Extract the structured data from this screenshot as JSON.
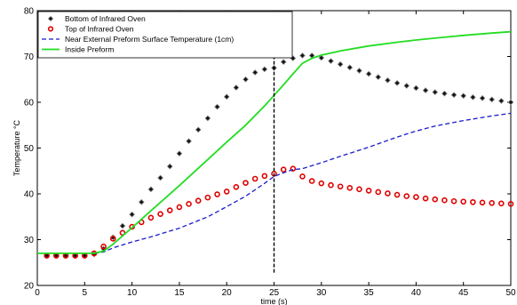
{
  "chart_data": {
    "type": "line",
    "title": "",
    "xlabel": "time (s)",
    "ylabel": "Temperature °C",
    "xlim": [
      0,
      50
    ],
    "ylim": [
      20,
      80
    ],
    "x_ticks": [
      "0",
      "5",
      "10",
      "15",
      "20",
      "25",
      "30",
      "35",
      "40",
      "45",
      "50"
    ],
    "y_ticks": [
      "20",
      "30",
      "40",
      "50",
      "60",
      "70",
      "80"
    ],
    "grid": false,
    "legend_position": "top-left",
    "vertical_marker": {
      "x": 25,
      "y_from": 22.5,
      "y_to": 76
    },
    "series": [
      {
        "name": "Bottom of Infrared Oven",
        "style": "diamond-markers",
        "color": "#000000",
        "x": [
          1,
          2,
          3,
          4,
          5,
          6,
          7,
          8,
          9,
          10,
          11,
          12,
          13,
          14,
          15,
          16,
          17,
          18,
          19,
          20,
          21,
          22,
          23,
          24,
          25,
          26,
          27,
          28,
          29,
          30,
          31,
          32,
          33,
          34,
          35,
          36,
          37,
          38,
          39,
          40,
          41,
          42,
          43,
          44,
          45,
          46,
          47,
          48,
          49,
          50
        ],
        "y": [
          26.5,
          26.5,
          26.5,
          26.5,
          26.5,
          26.8,
          28,
          30.5,
          33,
          35.5,
          38.2,
          41,
          43.5,
          46,
          48.8,
          51.5,
          54,
          56.5,
          59,
          61.2,
          63.2,
          65,
          66.5,
          67.2,
          67.5,
          68.8,
          69.6,
          70.2,
          70.2,
          69.7,
          69,
          68.3,
          67.6,
          66.9,
          66.2,
          65.5,
          64.8,
          64.2,
          63.6,
          63.1,
          62.6,
          62.2,
          61.9,
          61.6,
          61.4,
          61.1,
          60.9,
          60.6,
          60.3,
          60
        ]
      },
      {
        "name": "Top of Infrared Oven",
        "style": "circle-markers",
        "color": "#e00000",
        "x": [
          1,
          2,
          3,
          4,
          5,
          6,
          7,
          8,
          9,
          10,
          11,
          12,
          13,
          14,
          15,
          16,
          17,
          18,
          19,
          20,
          21,
          22,
          23,
          24,
          25,
          26,
          27,
          28,
          29,
          30,
          31,
          32,
          33,
          34,
          35,
          36,
          37,
          38,
          39,
          40,
          41,
          42,
          43,
          44,
          45,
          46,
          47,
          48,
          49,
          50
        ],
        "y": [
          26.5,
          26.5,
          26.5,
          26.5,
          26.5,
          27,
          28.5,
          30.2,
          31.5,
          32.8,
          33.8,
          34.8,
          35.6,
          36.4,
          37.1,
          37.8,
          38.5,
          39.2,
          39.9,
          40.5,
          41.5,
          42.4,
          43.3,
          43.9,
          44.4,
          45.3,
          45.5,
          43.8,
          42.8,
          42.3,
          41.9,
          41.6,
          41.3,
          41,
          40.7,
          40.4,
          40.1,
          39.8,
          39.5,
          39.3,
          39,
          38.8,
          38.6,
          38.4,
          38.3,
          38.2,
          38.1,
          38,
          37.9,
          37.8
        ]
      },
      {
        "name": "Near External Preform Surface Temperature (1cm)",
        "style": "dashed-line",
        "color": "#1a1acc",
        "x": [
          0,
          5,
          6,
          7,
          8,
          10,
          12,
          15,
          18,
          20,
          22,
          24,
          25,
          26,
          27,
          28,
          30,
          32,
          35,
          38,
          40,
          42,
          45,
          48,
          50
        ],
        "y": [
          27,
          27,
          27,
          27.3,
          28.2,
          29.5,
          30.6,
          32.5,
          35,
          37.2,
          39.5,
          42.3,
          43.8,
          44.6,
          45.3,
          45.5,
          46.8,
          48.2,
          50.2,
          52.4,
          53.7,
          54.8,
          56,
          57,
          57.6
        ]
      },
      {
        "name": "Inside Preform",
        "style": "solid-line",
        "color": "#22dd22",
        "x": [
          0,
          5,
          6,
          7,
          8,
          10,
          12,
          15,
          18,
          20,
          22,
          24,
          25,
          26,
          27,
          28,
          29,
          30,
          32,
          35,
          38,
          40,
          42,
          45,
          48,
          50
        ],
        "y": [
          27,
          27,
          27,
          27.5,
          29,
          32.6,
          36.3,
          41.8,
          47.5,
          51.3,
          55,
          59.2,
          61.5,
          63.8,
          66.2,
          68.5,
          69.6,
          70.3,
          71.2,
          72.3,
          73.1,
          73.6,
          74,
          74.6,
          75.1,
          75.4
        ]
      }
    ]
  }
}
